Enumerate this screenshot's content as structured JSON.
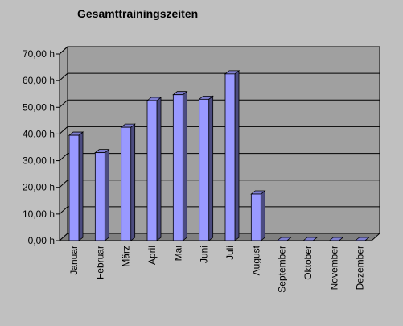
{
  "chart_data": {
    "type": "bar",
    "title": "Gesamttrainingszeiten",
    "categories": [
      "Januar",
      "Februar",
      "März",
      "April",
      "Mai",
      "Juni",
      "Juli",
      "August",
      "September",
      "Oktober",
      "November",
      "Dezember"
    ],
    "values": [
      39.5,
      33.0,
      42.5,
      52.5,
      54.7,
      53.0,
      62.5,
      17.5,
      0,
      0,
      0,
      0
    ],
    "yticks": [
      "0,00 h",
      "10,00 h",
      "20,00 h",
      "30,00 h",
      "40,00 h",
      "50,00 h",
      "60,00 h",
      "70,00 h"
    ],
    "ylim": [
      0,
      70
    ],
    "grid": true,
    "legend": "none",
    "colors": {
      "background": "#c0c0c0",
      "plot_back": "#a0a0a0",
      "plot_floor": "#808080",
      "bar_front": "#9999ff",
      "bar_side": "#4c4c80",
      "bar_top": "#7f7fd0",
      "gridline": "#000000"
    }
  }
}
